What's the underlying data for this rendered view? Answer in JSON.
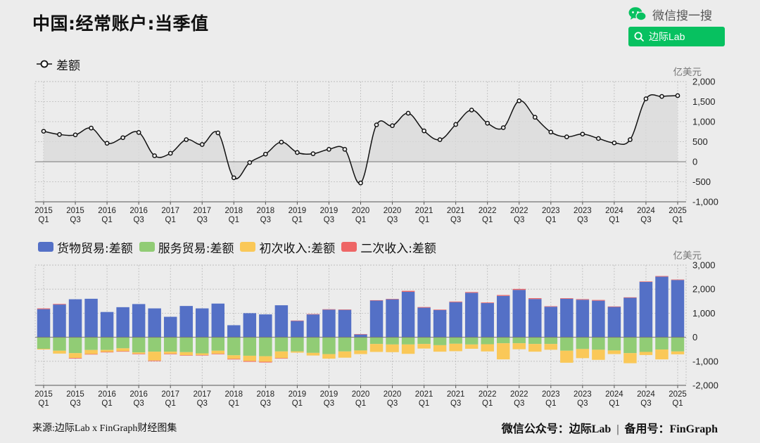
{
  "page": {
    "title": "中国:经常账户:当季值",
    "brand_label": "微信搜一搜",
    "search_label": "边际Lab",
    "footer_left": "来源:边际Lab x FinGraph财经图集",
    "footer_right_part1": "微信公众号：边际Lab",
    "footer_right_sep": "|",
    "footer_right_part2": "备用号：FinGraph"
  },
  "colors": {
    "background": "#ececec",
    "line_fill": "#d9d9d9",
    "brand_green": "#07c160",
    "goods": "#5470c6",
    "services": "#91cc75",
    "primary_income": "#fac858",
    "secondary_income": "#ee6666"
  },
  "chart_data": [
    {
      "type": "line",
      "legend": [
        "差额"
      ],
      "unit": "亿美元",
      "ylim": [
        -1000,
        2000
      ],
      "yticks": [
        "2,000",
        "1,500",
        "1,000",
        "500",
        "0",
        "-500",
        "-1,000"
      ],
      "x_tick_labels": [
        [
          "2015",
          "Q1"
        ],
        [
          "2015",
          "Q3"
        ],
        [
          "2016",
          "Q1"
        ],
        [
          "2016",
          "Q3"
        ],
        [
          "2017",
          "Q1"
        ],
        [
          "2017",
          "Q3"
        ],
        [
          "2018",
          "Q1"
        ],
        [
          "2018",
          "Q3"
        ],
        [
          "2019",
          "Q1"
        ],
        [
          "2019",
          "Q3"
        ],
        [
          "2020",
          "Q1"
        ],
        [
          "2020",
          "Q3"
        ],
        [
          "2021",
          "Q1"
        ],
        [
          "2021",
          "Q3"
        ],
        [
          "2022",
          "Q1"
        ],
        [
          "2022",
          "Q3"
        ],
        [
          "2023",
          "Q1"
        ],
        [
          "2023",
          "Q3"
        ],
        [
          "2024",
          "Q1"
        ],
        [
          "2024",
          "Q3"
        ],
        [
          "2025",
          "Q1"
        ]
      ],
      "series": [
        {
          "name": "差额",
          "values": [
            760,
            680,
            670,
            840,
            460,
            600,
            730,
            150,
            210,
            550,
            430,
            720,
            -400,
            -20,
            190,
            490,
            230,
            200,
            310,
            310,
            -530,
            920,
            900,
            1210,
            770,
            550,
            930,
            1290,
            960,
            850,
            1520,
            1110,
            740,
            620,
            690,
            580,
            470,
            550,
            1570,
            1630,
            1650
          ]
        }
      ]
    },
    {
      "type": "bar",
      "stacked": true,
      "unit": "亿美元",
      "ylim": [
        -2000,
        3000
      ],
      "yticks": [
        "3,000",
        "2,000",
        "1,000",
        "0",
        "-1,000",
        "-2,000"
      ],
      "x_tick_labels": [
        [
          "2015",
          "Q1"
        ],
        [
          "2015",
          "Q3"
        ],
        [
          "2016",
          "Q1"
        ],
        [
          "2016",
          "Q3"
        ],
        [
          "2017",
          "Q1"
        ],
        [
          "2017",
          "Q3"
        ],
        [
          "2018",
          "Q1"
        ],
        [
          "2018",
          "Q3"
        ],
        [
          "2019",
          "Q1"
        ],
        [
          "2019",
          "Q3"
        ],
        [
          "2020",
          "Q1"
        ],
        [
          "2020",
          "Q3"
        ],
        [
          "2021",
          "Q1"
        ],
        [
          "2021",
          "Q3"
        ],
        [
          "2022",
          "Q1"
        ],
        [
          "2022",
          "Q3"
        ],
        [
          "2023",
          "Q1"
        ],
        [
          "2023",
          "Q3"
        ],
        [
          "2024",
          "Q1"
        ],
        [
          "2024",
          "Q3"
        ],
        [
          "2025",
          "Q1"
        ]
      ],
      "series": [
        {
          "name": "货物贸易:差额",
          "values": [
            1170,
            1360,
            1580,
            1600,
            1050,
            1250,
            1380,
            1200,
            850,
            1300,
            1200,
            1400,
            500,
            1000,
            950,
            1330,
            680,
            950,
            1150,
            1140,
            120,
            1530,
            1580,
            1890,
            1230,
            1130,
            1460,
            1850,
            1420,
            1720,
            1970,
            1590,
            1270,
            1600,
            1560,
            1520,
            1260,
            1640,
            2300,
            2520,
            2380
          ]
        },
        {
          "name": "服务贸易:差额",
          "values": [
            -480,
            -560,
            -660,
            -530,
            -530,
            -460,
            -630,
            -600,
            -600,
            -620,
            -670,
            -560,
            -750,
            -770,
            -790,
            -590,
            -590,
            -650,
            -700,
            -590,
            -550,
            -280,
            -300,
            -300,
            -280,
            -330,
            -270,
            -300,
            -290,
            -250,
            -250,
            -280,
            -280,
            -560,
            -490,
            -520,
            -550,
            -660,
            -610,
            -510,
            -590
          ]
        },
        {
          "name": "初次收入:差额",
          "values": [
            -30,
            -120,
            -200,
            -170,
            -80,
            -120,
            -60,
            -370,
            -90,
            -130,
            -70,
            -130,
            -150,
            -220,
            -230,
            -280,
            -50,
            -110,
            -190,
            -260,
            -150,
            -330,
            -320,
            -390,
            -190,
            -270,
            -310,
            -180,
            -300,
            -670,
            -250,
            -320,
            -240,
            -500,
            -380,
            -420,
            -150,
            -420,
            -130,
            -410,
            -120
          ]
        },
        {
          "name": "二次收入:差额",
          "values": [
            30,
            25,
            -25,
            -20,
            -20,
            -20,
            -20,
            -25,
            -20,
            -15,
            -20,
            -20,
            -25,
            -30,
            -30,
            -20,
            15,
            15,
            15,
            15,
            10,
            10,
            15,
            40,
            25,
            20,
            25,
            30,
            25,
            35,
            40,
            35,
            20,
            25,
            25,
            30,
            20,
            20,
            20,
            25,
            20
          ]
        }
      ]
    }
  ]
}
